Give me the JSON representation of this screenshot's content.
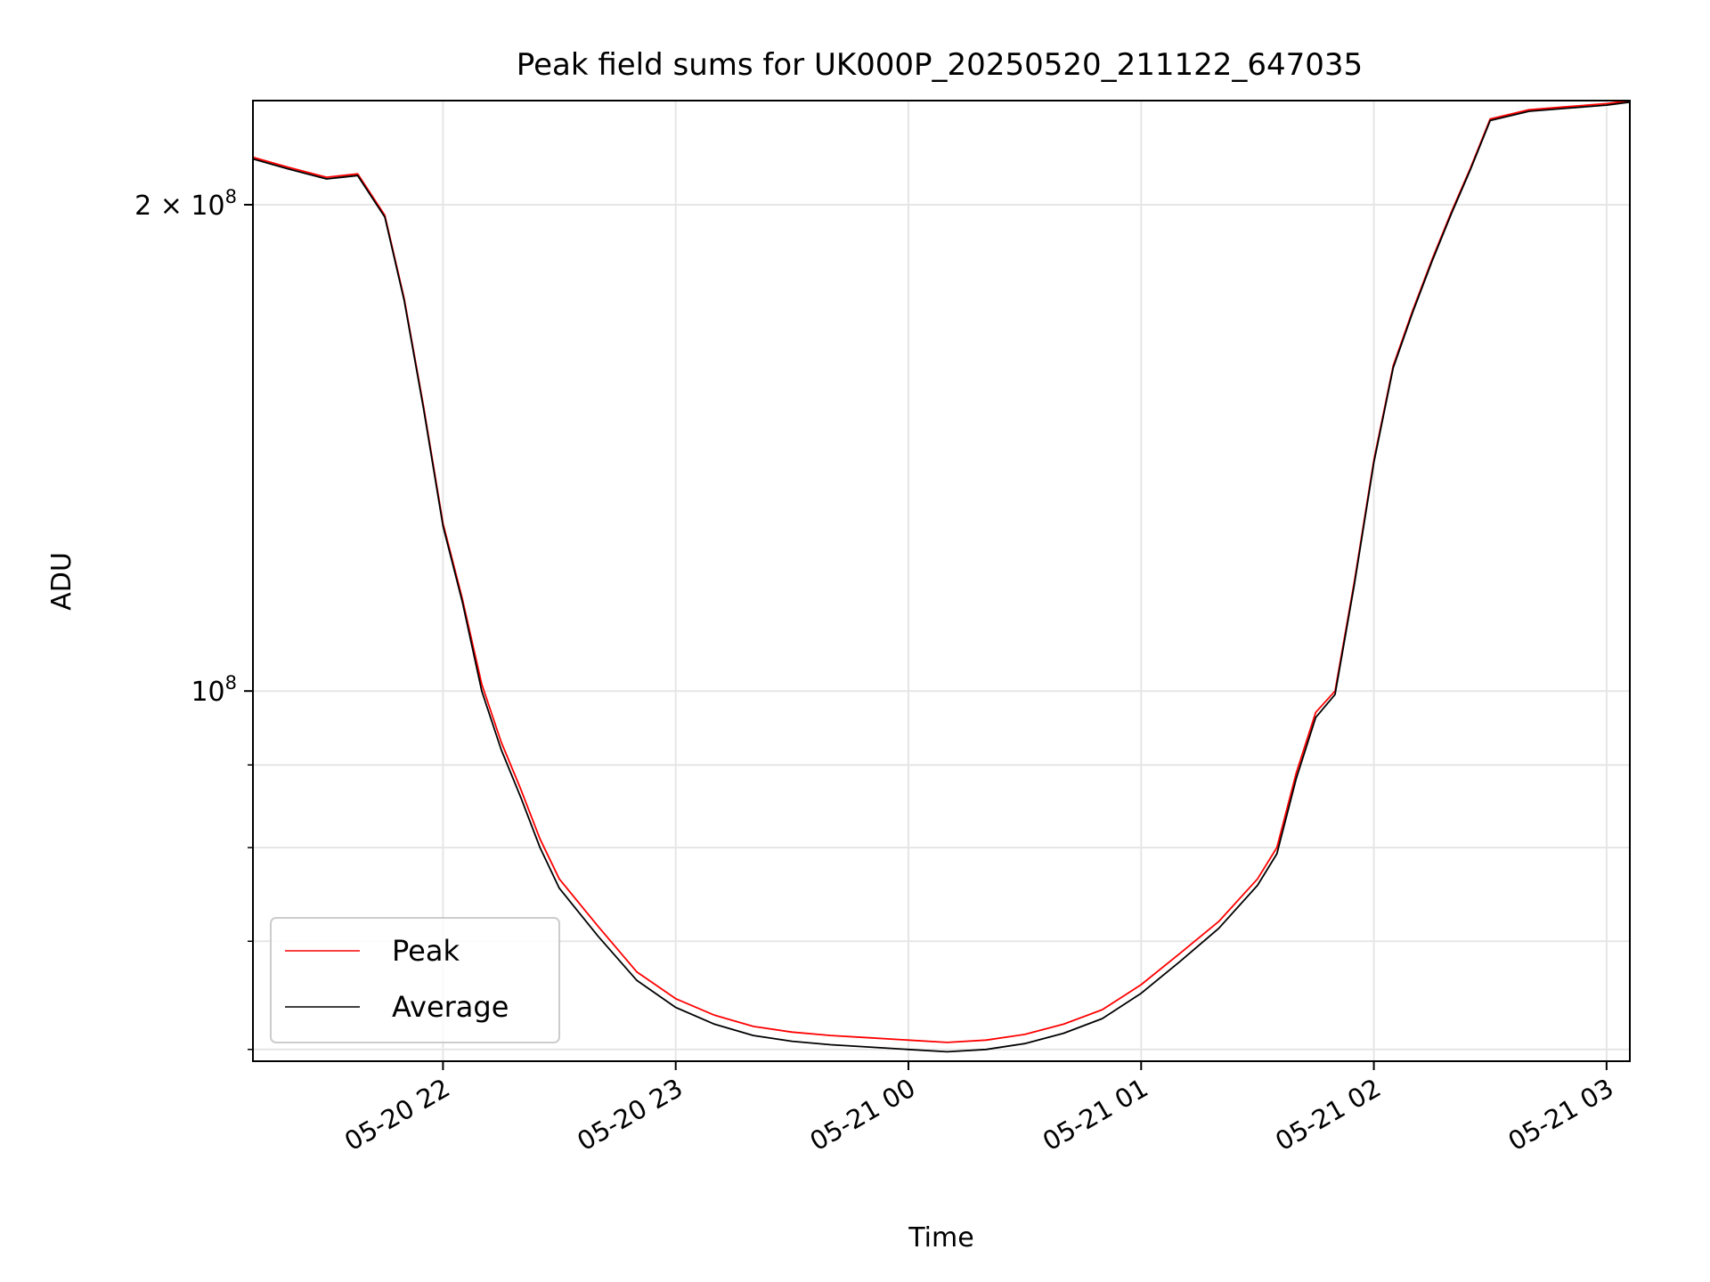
{
  "chart_data": {
    "type": "line",
    "title": "Peak field sums for UK000P_20250520_211122_647035",
    "xlabel": "Time",
    "ylabel": "ADU",
    "yscale": "log",
    "ylim": [
      59000000,
      232000000
    ],
    "xlim": [
      "2025-05-20 21:11",
      "2025-05-21 03:06"
    ],
    "grid": true,
    "legend_position": "lower-left",
    "x_ticks": [
      {
        "value": "2025-05-20 22:00",
        "label": "05-20 22"
      },
      {
        "value": "2025-05-20 23:00",
        "label": "05-20 23"
      },
      {
        "value": "2025-05-21 00:00",
        "label": "05-21 00"
      },
      {
        "value": "2025-05-21 01:00",
        "label": "05-21 01"
      },
      {
        "value": "2025-05-21 02:00",
        "label": "05-21 02"
      },
      {
        "value": "2025-05-21 03:00",
        "label": "05-21 03"
      }
    ],
    "y_ticks": [
      {
        "value": 100000000,
        "label_base": "10",
        "label_exp": "8"
      },
      {
        "value": 200000000,
        "label_base": "2 × 10",
        "label_exp": "8"
      }
    ],
    "y_minor_ticks": [
      60000000,
      70000000,
      80000000,
      90000000
    ],
    "x": [
      "2025-05-20 21:11",
      "2025-05-20 21:20",
      "2025-05-20 21:30",
      "2025-05-20 21:38",
      "2025-05-20 21:45",
      "2025-05-20 21:50",
      "2025-05-20 21:55",
      "2025-05-20 22:00",
      "2025-05-20 22:05",
      "2025-05-20 22:10",
      "2025-05-20 22:15",
      "2025-05-20 22:20",
      "2025-05-20 22:25",
      "2025-05-20 22:30",
      "2025-05-20 22:40",
      "2025-05-20 22:50",
      "2025-05-20 23:00",
      "2025-05-20 23:10",
      "2025-05-20 23:20",
      "2025-05-20 23:30",
      "2025-05-20 23:40",
      "2025-05-20 23:50",
      "2025-05-21 00:00",
      "2025-05-21 00:10",
      "2025-05-21 00:20",
      "2025-05-21 00:30",
      "2025-05-21 00:40",
      "2025-05-21 00:50",
      "2025-05-21 01:00",
      "2025-05-21 01:10",
      "2025-05-21 01:20",
      "2025-05-21 01:30",
      "2025-05-21 01:35",
      "2025-05-21 01:40",
      "2025-05-21 01:45",
      "2025-05-21 01:50",
      "2025-05-21 01:55",
      "2025-05-21 02:00",
      "2025-05-21 02:05",
      "2025-05-21 02:10",
      "2025-05-21 02:15",
      "2025-05-21 02:20",
      "2025-05-21 02:25",
      "2025-05-21 02:30",
      "2025-05-21 02:40",
      "2025-05-21 02:50",
      "2025-05-21 03:00",
      "2025-05-21 03:06"
    ],
    "series": [
      {
        "name": "Peak",
        "color": "#ff0000",
        "values": [
          214000000,
          211000000,
          208000000,
          209000000,
          197000000,
          175000000,
          150000000,
          127000000,
          114000000,
          101000000,
          93000000,
          87000000,
          81000000,
          76500000,
          71500000,
          67000000,
          64500000,
          63000000,
          62000000,
          61500000,
          61200000,
          61000000,
          60800000,
          60600000,
          60800000,
          61300000,
          62200000,
          63500000,
          65800000,
          68800000,
          72000000,
          76500000,
          80000000,
          89000000,
          97000000,
          100000000,
          117000000,
          139000000,
          159000000,
          172000000,
          185000000,
          198000000,
          211000000,
          226000000,
          229000000,
          230000000,
          231000000,
          232000000
        ]
      },
      {
        "name": "Average",
        "color": "#000000",
        "values": [
          213500000,
          210500000,
          207500000,
          208500000,
          196500000,
          174500000,
          149500000,
          126500000,
          113500000,
          100000000,
          92000000,
          86000000,
          80000000,
          75500000,
          70500000,
          66200000,
          63700000,
          62200000,
          61200000,
          60700000,
          60400000,
          60200000,
          60000000,
          59800000,
          60000000,
          60500000,
          61400000,
          62700000,
          65000000,
          68000000,
          71300000,
          75800000,
          79300000,
          88300000,
          96300000,
          99500000,
          116500000,
          138500000,
          158500000,
          171500000,
          184500000,
          197500000,
          210500000,
          225500000,
          228500000,
          229500000,
          230500000,
          231500000
        ]
      }
    ]
  }
}
